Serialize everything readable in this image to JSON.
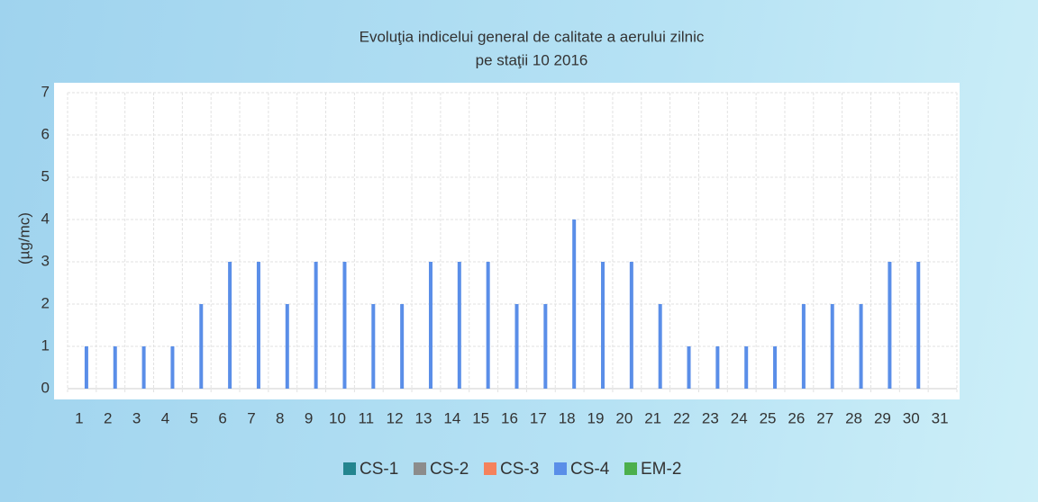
{
  "chart_data": {
    "type": "bar",
    "title": [
      "Evoluţia indicelui general de calitate a aerului zilnic",
      "pe staţii 10 2016"
    ],
    "y_label": "(µg/mc)",
    "categories": [
      "1",
      "2",
      "3",
      "4",
      "5",
      "6",
      "7",
      "8",
      "9",
      "10",
      "11",
      "12",
      "13",
      "14",
      "15",
      "16",
      "17",
      "18",
      "19",
      "20",
      "21",
      "22",
      "23",
      "24",
      "25",
      "26",
      "27",
      "28",
      "29",
      "30",
      "31"
    ],
    "series": [
      {
        "name": "CS-1",
        "color": "#23858f",
        "values": [
          null,
          null,
          null,
          null,
          null,
          null,
          null,
          null,
          null,
          null,
          null,
          null,
          null,
          null,
          null,
          null,
          null,
          null,
          null,
          null,
          null,
          null,
          null,
          null,
          null,
          null,
          null,
          null,
          null,
          null,
          null
        ]
      },
      {
        "name": "CS-2",
        "color": "#8c8c8c",
        "values": [
          null,
          null,
          null,
          null,
          null,
          null,
          null,
          null,
          null,
          null,
          null,
          null,
          null,
          null,
          null,
          null,
          null,
          null,
          null,
          null,
          null,
          null,
          null,
          null,
          null,
          null,
          null,
          null,
          null,
          null,
          null
        ]
      },
      {
        "name": "CS-3",
        "color": "#f5825c",
        "values": [
          null,
          null,
          null,
          null,
          null,
          null,
          null,
          null,
          null,
          null,
          null,
          null,
          null,
          null,
          null,
          null,
          null,
          null,
          null,
          null,
          null,
          null,
          null,
          null,
          null,
          null,
          null,
          null,
          null,
          null,
          null
        ]
      },
      {
        "name": "CS-4",
        "color": "#5a8ee8",
        "values": [
          1,
          1,
          1,
          1,
          2,
          3,
          3,
          2,
          3,
          3,
          2,
          2,
          3,
          3,
          3,
          2,
          2,
          4,
          3,
          3,
          2,
          1,
          1,
          1,
          1,
          2,
          2,
          2,
          3,
          3,
          null
        ]
      },
      {
        "name": "EM-2",
        "color": "#4caf4c",
        "values": [
          null,
          null,
          null,
          null,
          null,
          null,
          null,
          null,
          null,
          null,
          null,
          null,
          null,
          null,
          null,
          null,
          null,
          null,
          null,
          null,
          null,
          null,
          null,
          null,
          null,
          null,
          null,
          null,
          null,
          null,
          null
        ]
      }
    ],
    "ylim": [
      0,
      7
    ],
    "yticks": [
      0,
      1,
      2,
      3,
      4,
      5,
      6,
      7
    ],
    "grid": true,
    "legend": "bottom"
  }
}
